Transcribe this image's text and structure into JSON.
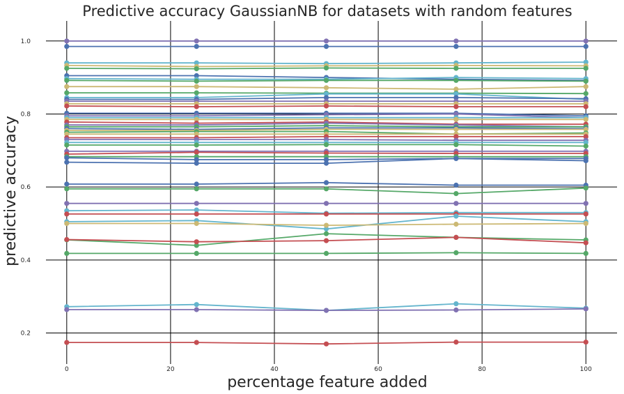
{
  "chart_data": {
    "type": "line",
    "title": "Predictive accuracy GaussianNB for datasets with random features",
    "xlabel": "percentage feature added",
    "ylabel": "predictive accuracy",
    "x": [
      0,
      25,
      50,
      75,
      100
    ],
    "xlim": [
      -4,
      106
    ],
    "ylim": [
      0.115,
      1.055
    ],
    "xticks": [
      0,
      20,
      40,
      60,
      80,
      100
    ],
    "xtick_labels": [
      "0",
      "20",
      "40",
      "60",
      "80",
      "100"
    ],
    "yticks": [
      0.2,
      0.4,
      0.6,
      0.8,
      1.0
    ],
    "ytick_labels": [
      "0.2",
      "0.4",
      "0.6",
      "0.8",
      "1.0"
    ],
    "grid": true,
    "legend": "none",
    "series": [
      {
        "color": "#8172b2",
        "values": [
          1.0,
          1.0,
          1.0,
          1.0,
          1.0
        ]
      },
      {
        "color": "#4c72b0",
        "values": [
          0.985,
          0.985,
          0.985,
          0.985,
          0.985
        ]
      },
      {
        "color": "#64b5cd",
        "values": [
          0.94,
          0.94,
          0.938,
          0.94,
          0.942
        ]
      },
      {
        "color": "#ccb974",
        "values": [
          0.933,
          0.93,
          0.932,
          0.933,
          0.932
        ]
      },
      {
        "color": "#55a868",
        "values": [
          0.925,
          0.924,
          0.926,
          0.925,
          0.925
        ]
      },
      {
        "color": "#4c72b0",
        "values": [
          0.905,
          0.905,
          0.9,
          0.895,
          0.892
        ]
      },
      {
        "color": "#64b5cd",
        "values": [
          0.897,
          0.895,
          0.895,
          0.9,
          0.897
        ]
      },
      {
        "color": "#55a868",
        "values": [
          0.892,
          0.89,
          0.892,
          0.892,
          0.89
        ]
      },
      {
        "color": "#ccb974",
        "values": [
          0.875,
          0.875,
          0.872,
          0.868,
          0.875
        ]
      },
      {
        "color": "#55a868",
        "values": [
          0.858,
          0.858,
          0.857,
          0.857,
          0.856
        ]
      },
      {
        "color": "#64b5cd",
        "values": [
          0.845,
          0.845,
          0.855,
          0.855,
          0.84
        ]
      },
      {
        "color": "#4c72b0",
        "values": [
          0.84,
          0.84,
          0.845,
          0.845,
          0.842
        ]
      },
      {
        "color": "#8172b2",
        "values": [
          0.835,
          0.835,
          0.835,
          0.835,
          0.835
        ]
      },
      {
        "color": "#ccb974",
        "values": [
          0.828,
          0.828,
          0.828,
          0.828,
          0.828
        ]
      },
      {
        "color": "#c44e52",
        "values": [
          0.822,
          0.82,
          0.822,
          0.82,
          0.82
        ]
      },
      {
        "color": "#4c72b0",
        "values": [
          0.802,
          0.802,
          0.802,
          0.802,
          0.795
        ]
      },
      {
        "color": "#8172b2",
        "values": [
          0.795,
          0.795,
          0.798,
          0.8,
          0.79
        ]
      },
      {
        "color": "#64b5cd",
        "values": [
          0.79,
          0.79,
          0.79,
          0.79,
          0.79
        ]
      },
      {
        "color": "#ccb974",
        "values": [
          0.785,
          0.785,
          0.785,
          0.785,
          0.785
        ]
      },
      {
        "color": "#c44e52",
        "values": [
          0.778,
          0.775,
          0.778,
          0.772,
          0.772
        ]
      },
      {
        "color": "#8172b2",
        "values": [
          0.77,
          0.77,
          0.775,
          0.77,
          0.765
        ]
      },
      {
        "color": "#55a868",
        "values": [
          0.765,
          0.765,
          0.768,
          0.765,
          0.765
        ]
      },
      {
        "color": "#4c72b0",
        "values": [
          0.76,
          0.758,
          0.762,
          0.762,
          0.76
        ]
      },
      {
        "color": "#ccb974",
        "values": [
          0.755,
          0.755,
          0.758,
          0.758,
          0.758
        ]
      },
      {
        "color": "#55a868",
        "values": [
          0.75,
          0.752,
          0.752,
          0.745,
          0.748
        ]
      },
      {
        "color": "#ccb974",
        "values": [
          0.745,
          0.745,
          0.745,
          0.745,
          0.745
        ]
      },
      {
        "color": "#c44e52",
        "values": [
          0.735,
          0.735,
          0.738,
          0.738,
          0.738
        ]
      },
      {
        "color": "#8172b2",
        "values": [
          0.73,
          0.73,
          0.73,
          0.728,
          0.728
        ]
      },
      {
        "color": "#64b5cd",
        "values": [
          0.722,
          0.722,
          0.722,
          0.722,
          0.722
        ]
      },
      {
        "color": "#55a868",
        "values": [
          0.715,
          0.715,
          0.716,
          0.716,
          0.712
        ]
      },
      {
        "color": "#8172b2",
        "values": [
          0.698,
          0.698,
          0.698,
          0.698,
          0.698
        ]
      },
      {
        "color": "#c44e52",
        "values": [
          0.69,
          0.695,
          0.693,
          0.692,
          0.692
        ]
      },
      {
        "color": "#55a868",
        "values": [
          0.683,
          0.683,
          0.683,
          0.683,
          0.683
        ]
      },
      {
        "color": "#4c72b0",
        "values": [
          0.68,
          0.675,
          0.675,
          0.678,
          0.678
        ]
      },
      {
        "color": "#4c72b0",
        "values": [
          0.668,
          0.665,
          0.665,
          0.678,
          0.672
        ]
      },
      {
        "color": "#4c72b0",
        "values": [
          0.608,
          0.608,
          0.612,
          0.605,
          0.605
        ]
      },
      {
        "color": "#55a868",
        "values": [
          0.595,
          0.595,
          0.595,
          0.582,
          0.597
        ]
      },
      {
        "color": "#8172b2",
        "values": [
          0.555,
          0.555,
          0.555,
          0.555,
          0.555
        ]
      },
      {
        "color": "#64b5cd",
        "values": [
          0.535,
          0.537,
          0.528,
          0.53,
          0.53
        ]
      },
      {
        "color": "#c44e52",
        "values": [
          0.526,
          0.526,
          0.526,
          0.526,
          0.526
        ]
      },
      {
        "color": "#64b5cd",
        "values": [
          0.505,
          0.508,
          0.485,
          0.52,
          0.505
        ]
      },
      {
        "color": "#ccb974",
        "values": [
          0.5,
          0.5,
          0.495,
          0.498,
          0.5
        ]
      },
      {
        "color": "#55a868",
        "values": [
          0.455,
          0.44,
          0.472,
          0.462,
          0.455
        ]
      },
      {
        "color": "#c44e52",
        "values": [
          0.456,
          0.45,
          0.453,
          0.462,
          0.447
        ]
      },
      {
        "color": "#55a868",
        "values": [
          0.418,
          0.418,
          0.418,
          0.42,
          0.418
        ]
      },
      {
        "color": "#64b5cd",
        "values": [
          0.272,
          0.278,
          0.262,
          0.28,
          0.268
        ]
      },
      {
        "color": "#8172b2",
        "values": [
          0.264,
          0.264,
          0.262,
          0.263,
          0.266
        ]
      },
      {
        "color": "#c44e52",
        "values": [
          0.174,
          0.174,
          0.17,
          0.175,
          0.175
        ]
      }
    ]
  }
}
